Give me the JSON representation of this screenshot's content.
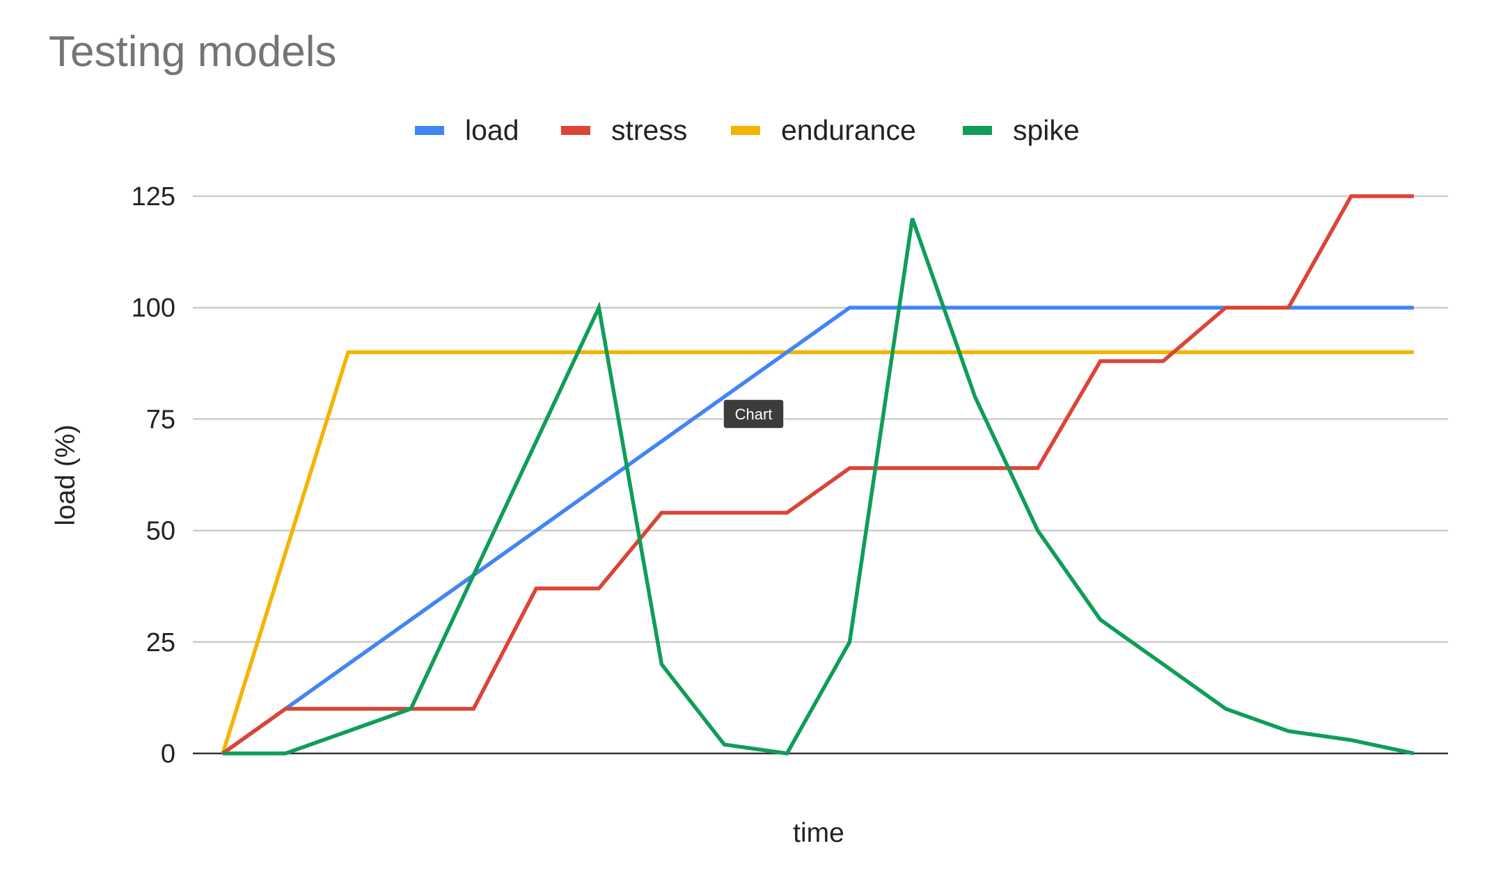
{
  "chart_data": {
    "type": "line",
    "title": "Testing models",
    "xlabel": "time",
    "ylabel": "load (%)",
    "ylim": [
      0,
      125
    ],
    "yticks": [
      0,
      25,
      50,
      75,
      100,
      125
    ],
    "grid": true,
    "legend_position": "top",
    "x": [
      0,
      1,
      2,
      3,
      4,
      5,
      6,
      7,
      8,
      9,
      10,
      11,
      12,
      13,
      14,
      15,
      16,
      17,
      18,
      19
    ],
    "series": [
      {
        "name": "load",
        "color": "#4285f4",
        "values": [
          0,
          10,
          20,
          30,
          40,
          50,
          60,
          70,
          80,
          90,
          100,
          100,
          100,
          100,
          100,
          100,
          100,
          100,
          100,
          100
        ]
      },
      {
        "name": "stress",
        "color": "#db4437",
        "values": [
          0,
          10,
          10,
          10,
          10,
          37,
          37,
          54,
          54,
          54,
          64,
          64,
          64,
          64,
          88,
          88,
          100,
          100,
          125,
          125
        ]
      },
      {
        "name": "endurance",
        "color": "#f4b400",
        "values": [
          0,
          45,
          90,
          90,
          90,
          90,
          90,
          90,
          90,
          90,
          90,
          90,
          90,
          90,
          90,
          90,
          90,
          90,
          90,
          90
        ]
      },
      {
        "name": "spike",
        "color": "#0f9d58",
        "values": [
          0,
          0,
          5,
          10,
          40,
          70,
          100,
          20,
          2,
          0,
          25,
          120,
          80,
          50,
          30,
          20,
          10,
          5,
          3,
          0
        ]
      }
    ]
  },
  "tooltip": {
    "text": "Chart"
  }
}
